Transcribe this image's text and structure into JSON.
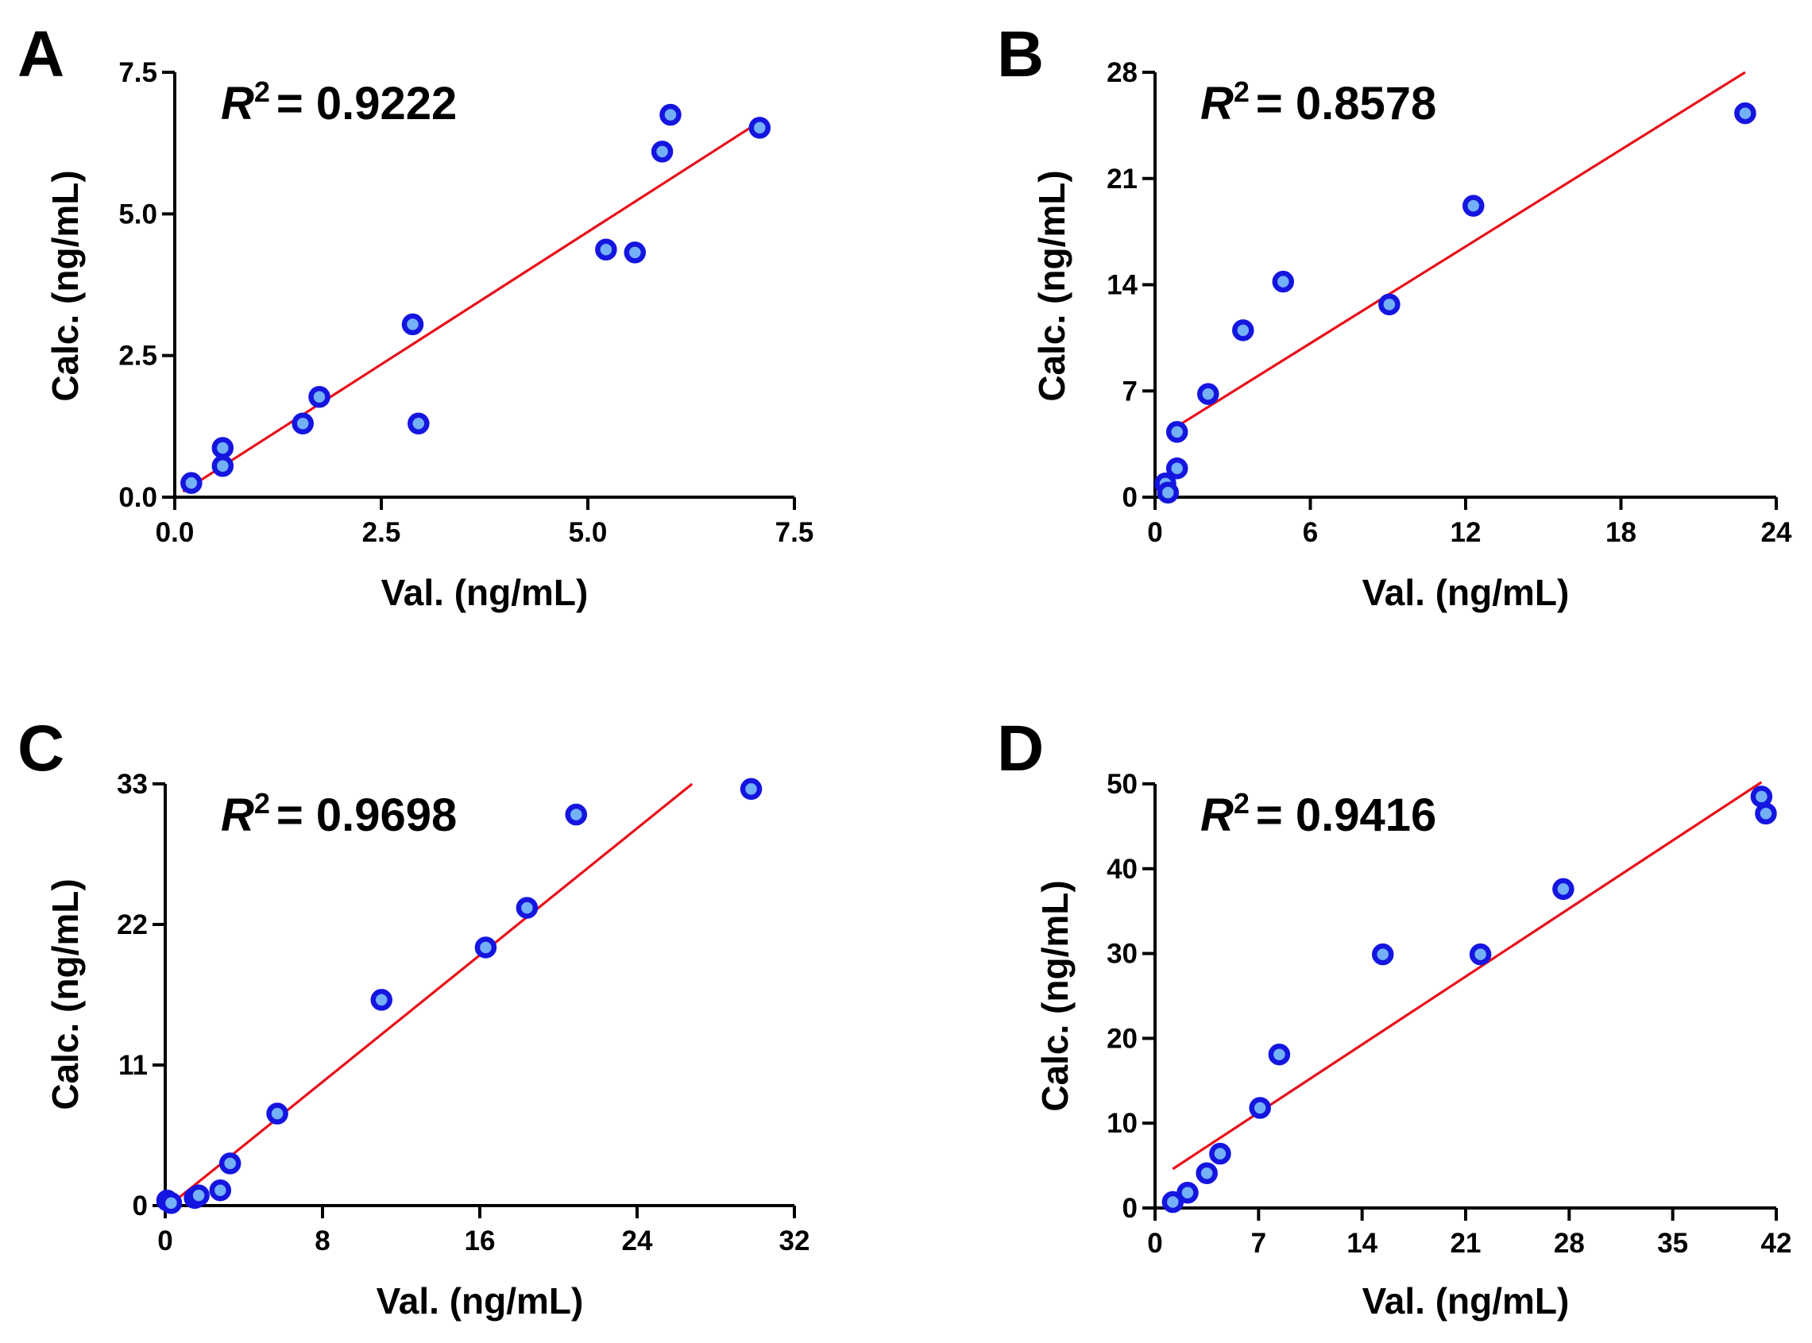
{
  "colors": {
    "point_fill": "#73B0F5",
    "point_stroke": "#1515E0",
    "fit_line": "#E8101A",
    "axis": "#000000"
  },
  "chart_data": [
    {
      "panel": "A",
      "type": "scatter",
      "r2_prefix": "R",
      "r2_sup": "2",
      "r2_value": "= 0.9222",
      "xlabel": "Val. (ng/mL)",
      "ylabel": "Calc. (ng/mL)",
      "xlim": [
        0,
        7.5
      ],
      "ylim": [
        0,
        7.5
      ],
      "xticks": [
        0,
        2.5,
        5,
        7.5
      ],
      "xtick_labels": [
        "0.0",
        "2.5",
        "5.0",
        "7.5"
      ],
      "yticks": [
        0,
        2.5,
        5,
        7.5
      ],
      "ytick_labels": [
        "0.0",
        "2.5",
        "5.0",
        "7.5"
      ],
      "fit_line": {
        "x": [
          0.1,
          7.05
        ],
        "y": [
          0.1,
          6.6
        ]
      },
      "points": [
        {
          "x": 0.2,
          "y": 0.25
        },
        {
          "x": 0.58,
          "y": 0.87
        },
        {
          "x": 0.58,
          "y": 0.55
        },
        {
          "x": 1.55,
          "y": 1.3
        },
        {
          "x": 1.75,
          "y": 1.77
        },
        {
          "x": 2.88,
          "y": 3.05
        },
        {
          "x": 2.95,
          "y": 1.3
        },
        {
          "x": 5.22,
          "y": 4.37
        },
        {
          "x": 5.57,
          "y": 4.32
        },
        {
          "x": 5.9,
          "y": 6.1
        },
        {
          "x": 6.0,
          "y": 6.75
        },
        {
          "x": 7.08,
          "y": 6.52
        }
      ]
    },
    {
      "panel": "B",
      "type": "scatter",
      "r2_prefix": "R",
      "r2_sup": "2",
      "r2_value": "= 0.8578",
      "xlabel": "Val. (ng/mL)",
      "ylabel": "Calc. (ng/mL)",
      "xlim": [
        0,
        24
      ],
      "ylim": [
        0,
        28
      ],
      "xticks": [
        0,
        6,
        12,
        18,
        24
      ],
      "xtick_labels": [
        "0",
        "6",
        "12",
        "18",
        "24"
      ],
      "yticks": [
        0,
        7,
        14,
        21,
        28
      ],
      "yticks_note": "",
      "ytick_labels": [
        "0",
        "7",
        "14",
        "21",
        "28"
      ],
      "fit_line": {
        "x": [
          0.6,
          22.8
        ],
        "y": [
          4.4,
          28.0
        ]
      },
      "points": [
        {
          "x": 0.4,
          "y": 0.9
        },
        {
          "x": 0.5,
          "y": 0.3
        },
        {
          "x": 0.85,
          "y": 4.3
        },
        {
          "x": 0.85,
          "y": 1.9
        },
        {
          "x": 2.05,
          "y": 6.8
        },
        {
          "x": 3.4,
          "y": 11.0
        },
        {
          "x": 4.95,
          "y": 14.2
        },
        {
          "x": 9.05,
          "y": 12.7
        },
        {
          "x": 12.3,
          "y": 19.2
        },
        {
          "x": 22.8,
          "y": 25.3
        }
      ]
    },
    {
      "panel": "C",
      "type": "scatter",
      "r2_prefix": "R",
      "r2_sup": "2",
      "r2_value": "= 0.9698",
      "xlabel": "Val. (ng/mL)",
      "ylabel": "Calc. (ng/mL)",
      "xlim": [
        0,
        32
      ],
      "ylim": [
        0,
        33
      ],
      "xticks": [
        0,
        8,
        16,
        24,
        32
      ],
      "xtick_labels": [
        "0",
        "8",
        "16",
        "24",
        "32"
      ],
      "yticks": [
        0,
        11,
        22,
        33
      ],
      "ytick_labels": [
        "0",
        "11",
        "22",
        "33"
      ],
      "fit_line": {
        "x": [
          0.2,
          26.8
        ],
        "y": [
          0.0,
          33.0
        ]
      },
      "points": [
        {
          "x": 0.1,
          "y": 0.4
        },
        {
          "x": 0.3,
          "y": 0.2
        },
        {
          "x": 1.5,
          "y": 0.6
        },
        {
          "x": 1.7,
          "y": 0.8
        },
        {
          "x": 2.8,
          "y": 1.2
        },
        {
          "x": 3.3,
          "y": 3.3
        },
        {
          "x": 5.7,
          "y": 7.2
        },
        {
          "x": 11.0,
          "y": 16.1
        },
        {
          "x": 16.3,
          "y": 20.2
        },
        {
          "x": 18.4,
          "y": 23.3
        },
        {
          "x": 20.9,
          "y": 30.6
        },
        {
          "x": 29.8,
          "y": 32.6
        }
      ]
    },
    {
      "panel": "D",
      "type": "scatter",
      "r2_prefix": "R",
      "r2_sup": "2",
      "r2_value": "= 0.9416",
      "xlabel": "Val. (ng/mL)",
      "ylabel": "Calc. (ng/mL)",
      "xlim": [
        0,
        42
      ],
      "ylim": [
        0,
        50
      ],
      "xticks": [
        0,
        7,
        14,
        21,
        28,
        35,
        42
      ],
      "xtick_labels": [
        "0",
        "7",
        "14",
        "21",
        "28",
        "35",
        "42"
      ],
      "yticks": [
        0,
        10,
        20,
        30,
        40,
        50
      ],
      "ytick_labels": [
        "0",
        "10",
        "20",
        "30",
        "40",
        "50"
      ],
      "fit_line": {
        "x": [
          1.2,
          41.0
        ],
        "y": [
          4.6,
          50.2
        ]
      },
      "points": [
        {
          "x": 1.2,
          "y": 0.7
        },
        {
          "x": 2.2,
          "y": 1.8
        },
        {
          "x": 3.5,
          "y": 4.1
        },
        {
          "x": 4.4,
          "y": 6.4
        },
        {
          "x": 7.1,
          "y": 11.8
        },
        {
          "x": 8.4,
          "y": 18.1
        },
        {
          "x": 15.4,
          "y": 29.9
        },
        {
          "x": 22.0,
          "y": 29.9
        },
        {
          "x": 27.6,
          "y": 37.6
        },
        {
          "x": 41.0,
          "y": 48.5
        },
        {
          "x": 41.3,
          "y": 46.5
        }
      ]
    }
  ]
}
